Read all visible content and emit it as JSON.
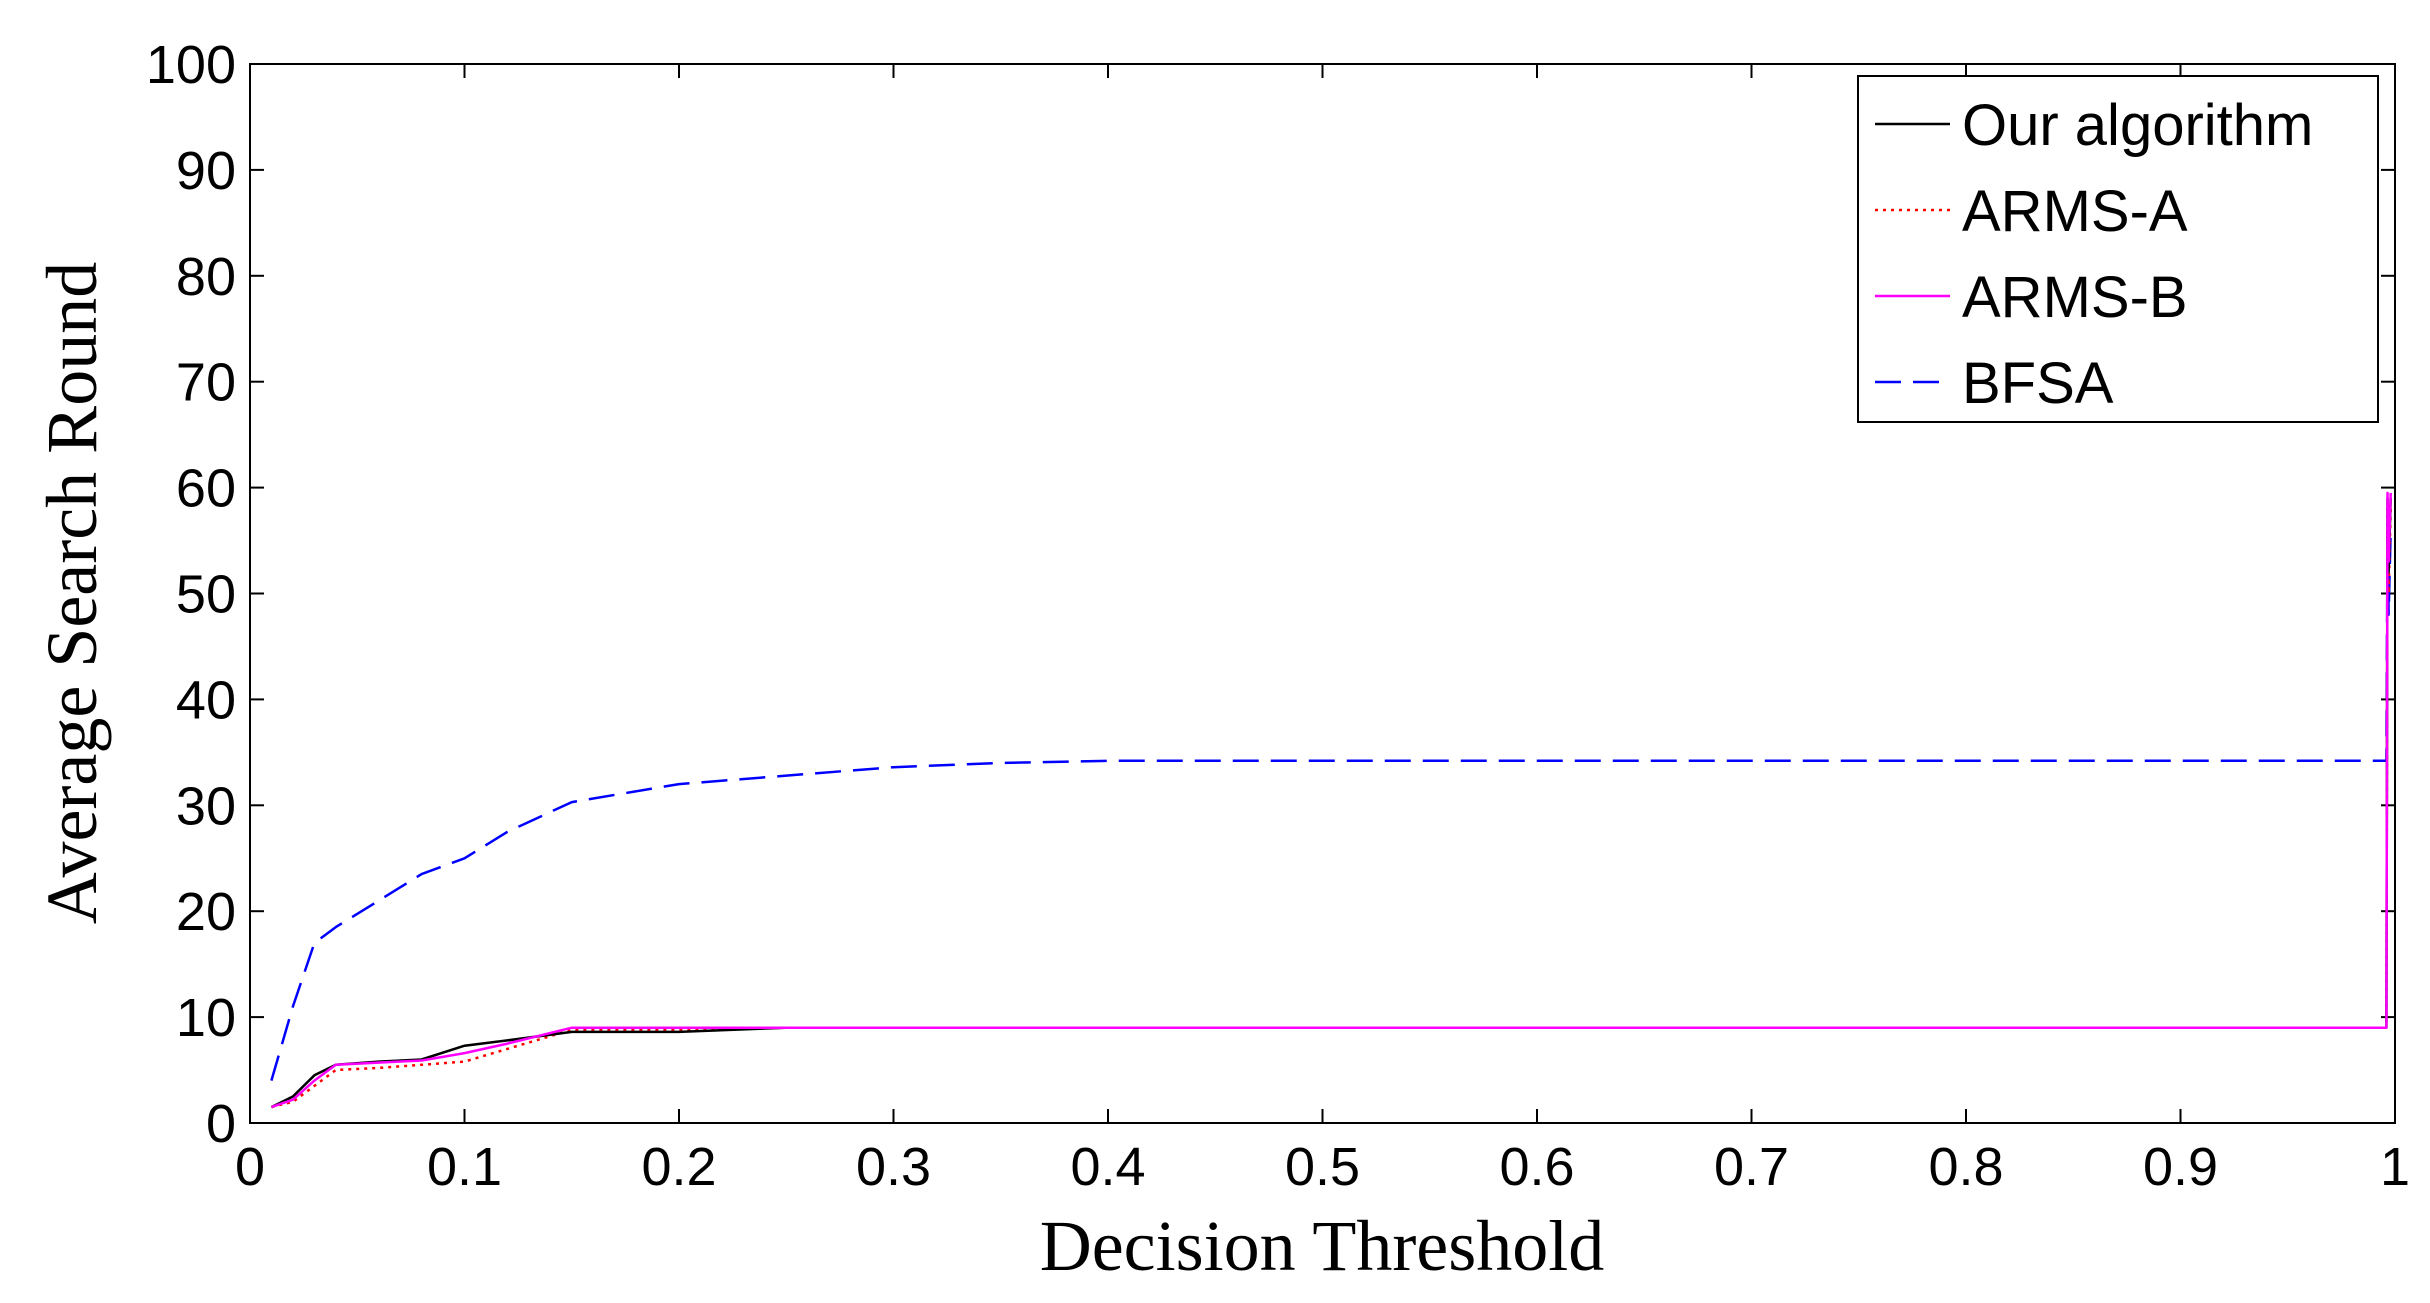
{
  "chart_data": {
    "type": "line",
    "title": "",
    "xlabel": "Decision Threshold",
    "ylabel": "Average Search Round",
    "xlim": [
      0,
      1
    ],
    "ylim": [
      0,
      100
    ],
    "xticks": [
      "0",
      "0.1",
      "0.2",
      "0.3",
      "0.4",
      "0.5",
      "0.6",
      "0.7",
      "0.8",
      "0.9",
      "1"
    ],
    "yticks": [
      "0",
      "10",
      "20",
      "30",
      "40",
      "50",
      "60",
      "70",
      "80",
      "90",
      "100"
    ],
    "grid": false,
    "legend_position": "top-right",
    "series": [
      {
        "name": "Our algorithm",
        "color": "#000000",
        "style": "solid",
        "x": [
          0.01,
          0.02,
          0.03,
          0.04,
          0.06,
          0.08,
          0.1,
          0.12,
          0.15,
          0.2,
          0.25,
          0.3,
          0.5,
          0.7,
          0.9,
          0.995,
          0.996,
          0.9965,
          0.997,
          0.998
        ],
        "y": [
          1.5,
          2.5,
          4.5,
          5.5,
          5.8,
          6.0,
          7.3,
          7.8,
          8.6,
          8.6,
          9.0,
          9.0,
          9.0,
          9.0,
          9.0,
          9.0,
          9.0,
          59.0,
          52.0,
          59.0
        ]
      },
      {
        "name": "ARMS-A",
        "color": "#ff0000",
        "style": "dotted",
        "x": [
          0.01,
          0.02,
          0.03,
          0.04,
          0.06,
          0.08,
          0.1,
          0.12,
          0.15,
          0.2,
          0.25,
          0.3,
          0.5,
          0.7,
          0.9,
          0.995,
          0.996,
          0.9965,
          0.997,
          0.998
        ],
        "y": [
          1.5,
          2.0,
          3.5,
          5.0,
          5.2,
          5.5,
          5.8,
          7.0,
          8.8,
          8.8,
          9.0,
          9.0,
          9.0,
          9.0,
          9.0,
          9.0,
          9.0,
          58.0,
          50.0,
          58.0
        ]
      },
      {
        "name": "ARMS-B",
        "color": "#ff00ff",
        "style": "solid",
        "x": [
          0.01,
          0.02,
          0.03,
          0.04,
          0.06,
          0.08,
          0.1,
          0.12,
          0.15,
          0.2,
          0.25,
          0.3,
          0.5,
          0.7,
          0.9,
          0.995,
          0.996,
          0.9965,
          0.997,
          0.998
        ],
        "y": [
          1.5,
          2.2,
          4.0,
          5.5,
          5.7,
          5.9,
          6.6,
          7.5,
          9.0,
          9.0,
          9.0,
          9.0,
          9.0,
          9.0,
          9.0,
          9.0,
          9.0,
          59.5,
          53.0,
          59.5
        ]
      },
      {
        "name": "BFSA",
        "color": "#0000ff",
        "style": "dashed",
        "x": [
          0.01,
          0.02,
          0.03,
          0.04,
          0.06,
          0.08,
          0.1,
          0.12,
          0.15,
          0.2,
          0.25,
          0.3,
          0.35,
          0.4,
          0.5,
          0.7,
          0.9,
          0.995,
          0.996,
          0.9965,
          0.997,
          0.998
        ],
        "y": [
          4.0,
          11.0,
          17.0,
          18.5,
          21.0,
          23.5,
          25.0,
          27.5,
          30.3,
          32.0,
          32.8,
          33.6,
          34.0,
          34.2,
          34.2,
          34.2,
          34.2,
          34.2,
          34.2,
          56.0,
          48.0,
          56.0
        ]
      }
    ]
  }
}
